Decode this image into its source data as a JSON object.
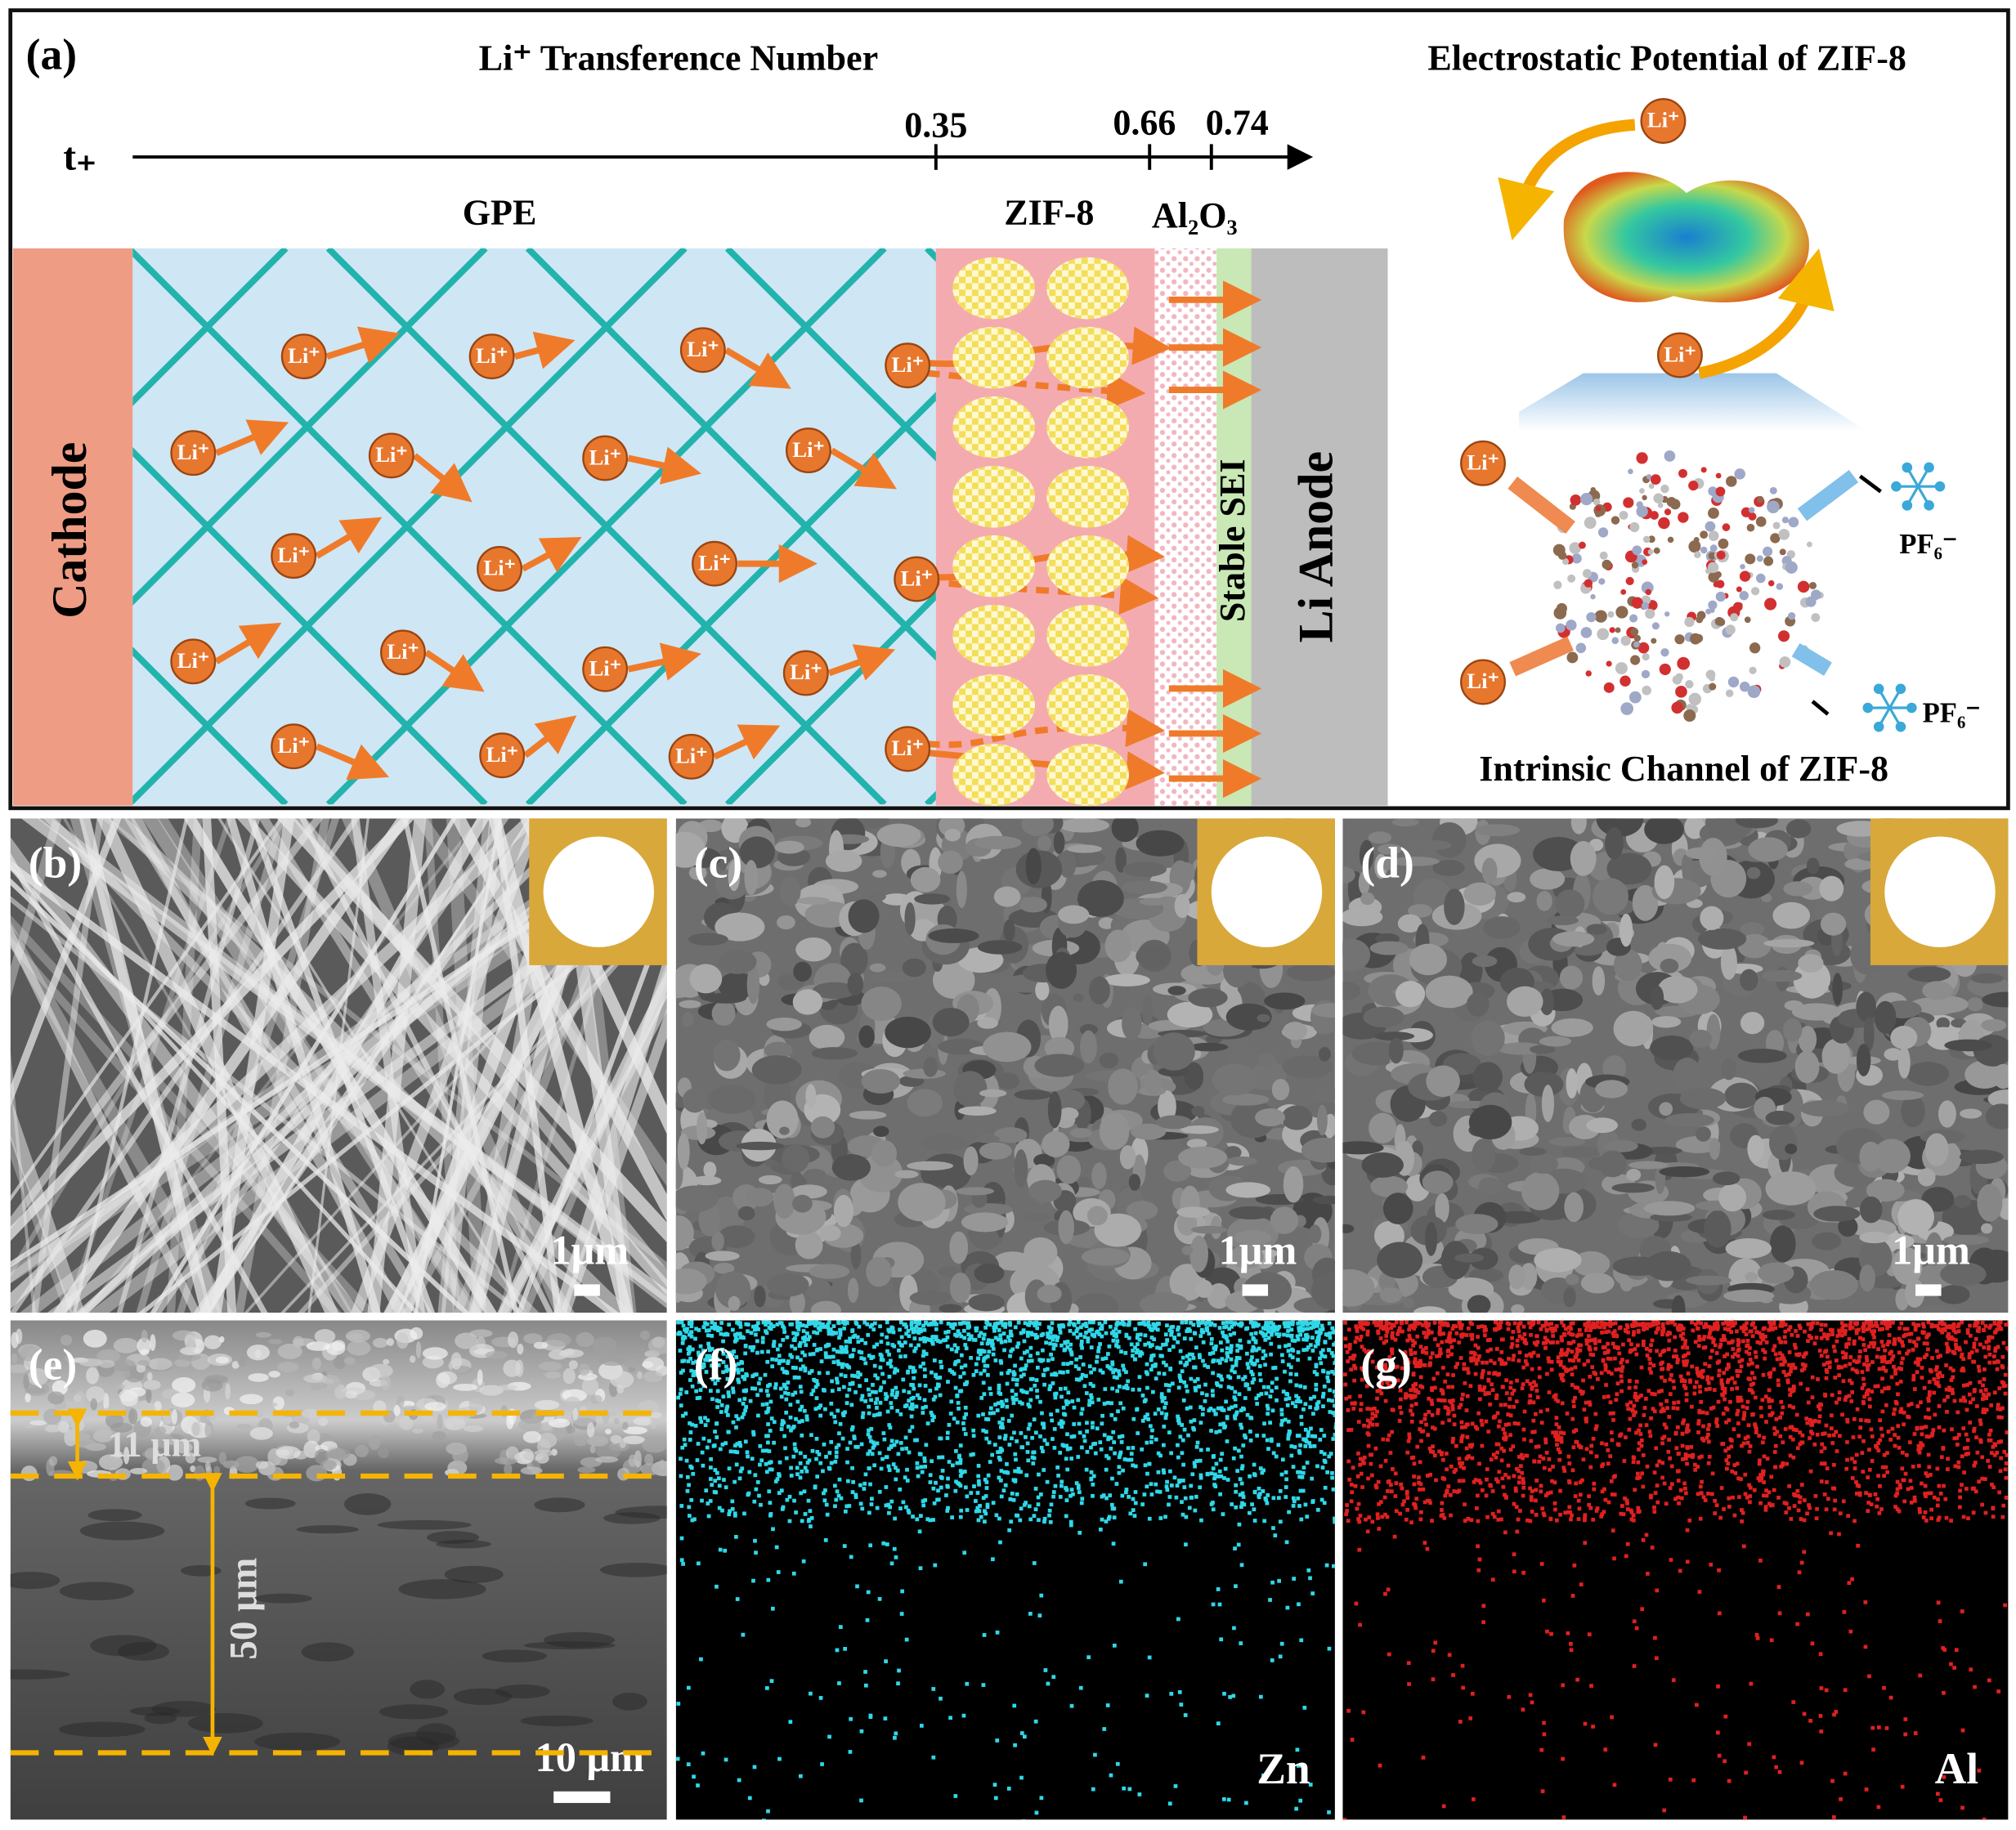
{
  "figure": {
    "panel_a": {
      "label": "(a)",
      "title": "Li⁺ Transference Number",
      "axis_symbol": "t₊",
      "axis_ticks": [
        "0.35",
        "0.66",
        "0.74"
      ],
      "regions": {
        "cathode": "Cathode",
        "gpe": "GPE",
        "zif8": "ZIF-8",
        "al2o3": "Al₂O₃",
        "sei": "Stable SEI",
        "anode": "Li Anode"
      },
      "ion_label": "Li⁺",
      "right_title": "Electrostatic Potential of ZIF-8",
      "right_caption": "Intrinsic Channel of ZIF-8",
      "anion_label": "PF₆⁻"
    },
    "panels": [
      {
        "label": "(b)",
        "scale_bar": "1μm"
      },
      {
        "label": "(c)",
        "scale_bar": "1μm"
      },
      {
        "label": "(d)",
        "scale_bar": "1μm"
      },
      {
        "label": "(e)",
        "scale_bar": "10 μm",
        "thickness_labels": [
          "11 μm",
          "50 μm"
        ]
      },
      {
        "label": "(f)",
        "element": "Zn"
      },
      {
        "label": "(g)",
        "element": "Al"
      }
    ]
  }
}
